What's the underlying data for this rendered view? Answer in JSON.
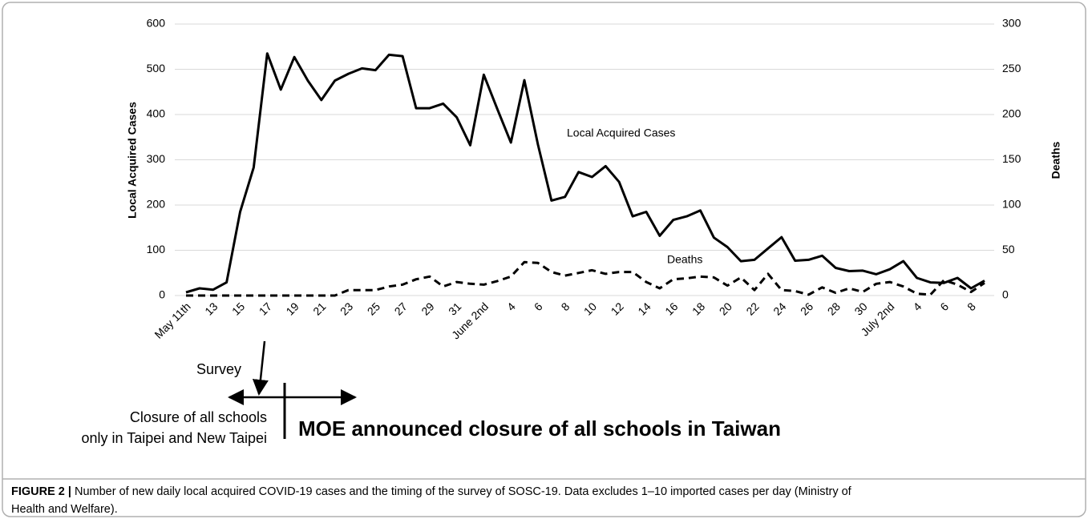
{
  "chart_data": {
    "type": "line",
    "y_label": "Local Acquired Cases",
    "y2_label": "Deaths",
    "categories": [
      "May 11th",
      null,
      "13",
      null,
      "15",
      null,
      "17",
      null,
      "19",
      null,
      "21",
      null,
      "23",
      null,
      "25",
      null,
      "27",
      null,
      "29",
      null,
      "31",
      null,
      "June 2nd",
      null,
      "4",
      null,
      "6",
      null,
      "8",
      null,
      "10",
      null,
      "12",
      null,
      "14",
      null,
      "16",
      null,
      "18",
      null,
      "20",
      null,
      "22",
      null,
      "24",
      null,
      "26",
      null,
      "28",
      null,
      "30",
      null,
      "July 2nd",
      null,
      "4",
      null,
      "6",
      null,
      "8",
      null
    ],
    "series": [
      {
        "name": "Local Acquired Cases",
        "color": "#000000",
        "line_style": "solid",
        "values": [
          7,
          16,
          13,
          29,
          185,
          283,
          535,
          455,
          527,
          475,
          432,
          475,
          490,
          502,
          498,
          532,
          529,
          414,
          414,
          424,
          394,
          332,
          488,
          412,
          338,
          476,
          334,
          210,
          218,
          273,
          262,
          286,
          251,
          175,
          185,
          132,
          167,
          175,
          188,
          128,
          107,
          76,
          79,
          104,
          129,
          77,
          79,
          88,
          61,
          54,
          55,
          47,
          58,
          76,
          39,
          29,
          28,
          39,
          16,
          33
        ]
      },
      {
        "name": "Deaths",
        "color": "#000000",
        "line_style": "dashed",
        "axis": "y2",
        "values": [
          0,
          0,
          0,
          0,
          0,
          0,
          0,
          0,
          0,
          0,
          0,
          0,
          6,
          6,
          6,
          10,
          12,
          18,
          21,
          10,
          15,
          13,
          12,
          16,
          21,
          37,
          36,
          26,
          22,
          25,
          28,
          24,
          26,
          26,
          15,
          8,
          18,
          19,
          21,
          20,
          11,
          20,
          6,
          24,
          6,
          5,
          1,
          9,
          3,
          8,
          4,
          13,
          15,
          10,
          2,
          1,
          17,
          12,
          4,
          14
        ]
      }
    ],
    "ylim": [
      0,
      600
    ],
    "yticks": [
      0,
      100,
      200,
      300,
      400,
      500,
      600
    ],
    "y2lim": [
      0,
      300
    ],
    "y2ticks": [
      0,
      50,
      100,
      150,
      200,
      250,
      300
    ],
    "grid": true,
    "annotations": [
      "Survey",
      "Closure of all schools",
      "only in Taipei and New Taipei",
      "MOE announced closure of all schools in Taiwan"
    ]
  },
  "caption": {
    "label": "FIGURE 2 |",
    "text": "Number of new daily local acquired COVID-19 cases and the timing of the survey of SOSC-19. Data excludes 1–10 imported cases per day (Ministry of",
    "text2": "Health and Welfare)."
  }
}
